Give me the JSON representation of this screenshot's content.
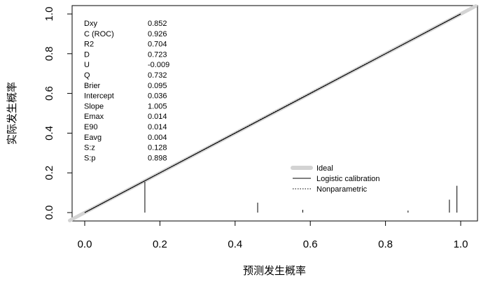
{
  "chart_data": {
    "type": "line",
    "xlabel": "预测发生概率",
    "ylabel": "实际发生概率",
    "xlim": [
      0,
      1
    ],
    "ylim": [
      0,
      1
    ],
    "x_ticks": [
      "0.0",
      "0.2",
      "0.4",
      "0.6",
      "0.8",
      "1.0"
    ],
    "y_ticks": [
      "0.0",
      "0.2",
      "0.4",
      "0.6",
      "0.8",
      "1.0"
    ],
    "grid": false,
    "legend_position": "bottom-right",
    "series": [
      {
        "name": "Ideal",
        "x": [
          0,
          1
        ],
        "y": [
          0,
          1
        ],
        "style": "thick-gray",
        "color": "#d3d3d3"
      },
      {
        "name": "Logistic calibration",
        "x": [
          0,
          0.2,
          0.4,
          0.6,
          0.8,
          1.0
        ],
        "y": [
          0.0,
          0.2,
          0.4,
          0.6,
          0.8,
          1.0
        ],
        "style": "solid",
        "color": "#000000"
      },
      {
        "name": "Nonparametric",
        "x": [
          0,
          0.2,
          0.4,
          0.6,
          0.8,
          1.0
        ],
        "y": [
          0.0,
          0.2,
          0.401,
          0.601,
          0.8,
          1.0
        ],
        "style": "dotted",
        "color": "#000000"
      }
    ],
    "rug_spikes": [
      {
        "x": 0.16,
        "height": 0.155
      },
      {
        "x": 0.46,
        "height": 0.05
      },
      {
        "x": 0.58,
        "height": 0.014
      },
      {
        "x": 0.86,
        "height": 0.01
      },
      {
        "x": 0.97,
        "height": 0.065
      },
      {
        "x": 0.99,
        "height": 0.135
      }
    ],
    "stats": [
      {
        "name": "Dxy",
        "value": "0.852"
      },
      {
        "name": "C (ROC)",
        "value": "0.926"
      },
      {
        "name": "R2",
        "value": "0.704"
      },
      {
        "name": "D",
        "value": "0.723"
      },
      {
        "name": "U",
        "value": "-0.009"
      },
      {
        "name": "Q",
        "value": "0.732"
      },
      {
        "name": "Brier",
        "value": "0.095"
      },
      {
        "name": "Intercept",
        "value": "0.036"
      },
      {
        "name": "Slope",
        "value": "1.005"
      },
      {
        "name": "Emax",
        "value": "0.014"
      },
      {
        "name": "E90",
        "value": "0.014"
      },
      {
        "name": "Eavg",
        "value": "0.004"
      },
      {
        "name": "S:z",
        "value": "0.128"
      },
      {
        "name": "S:p",
        "value": "0.898"
      }
    ]
  }
}
